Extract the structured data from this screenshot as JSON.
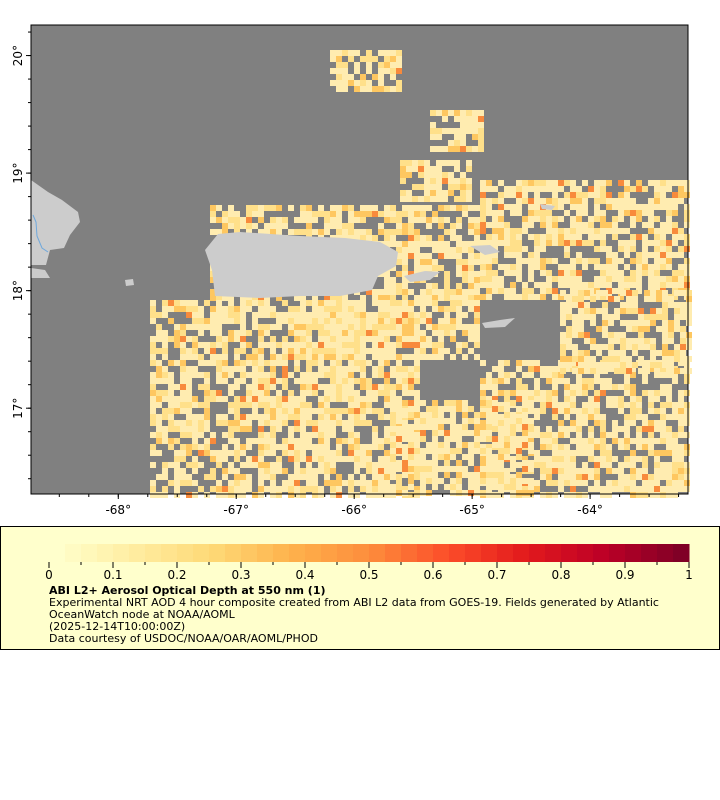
{
  "map": {
    "lon_range": [
      -68.74,
      -63.17
    ],
    "lat_range": [
      16.27,
      20.26
    ],
    "lon_ticks": [
      "-68°",
      "-67°",
      "-66°",
      "-65°",
      "-64°"
    ],
    "lon_tick_values": [
      -68,
      -67,
      -66,
      -65,
      -64
    ],
    "lat_ticks": [
      "20°",
      "19°",
      "18°",
      "17°"
    ],
    "lat_tick_values": [
      20,
      19,
      18,
      17
    ],
    "colors": {
      "no_data": "#808080",
      "land": "#cccccc",
      "river": "#6fa8dc",
      "low_aod": "#ffe9a0"
    }
  },
  "legend": {
    "colorbar_range": [
      0,
      1
    ],
    "colorbar_segments": 40,
    "colorscale": [
      "#ffffcc",
      "#ffeda0",
      "#fed976",
      "#feb24c",
      "#fd8d3c",
      "#fc4e2a",
      "#e31a1c",
      "#bd0026",
      "#800026"
    ],
    "tick_labels": [
      "0",
      "0.1",
      "0.2",
      "0.3",
      "0.4",
      "0.5",
      "0.6",
      "0.7",
      "0.8",
      "0.9",
      "1"
    ],
    "title": "ABI L2+ Aerosol Optical Depth at 550 nm (1)",
    "desc1": "Experimental NRT AOD 4 hour composite created from ABI L2 data from GOES-19. Fields generated by Atlantic",
    "desc2": "OceanWatch node at NOAA/AOML",
    "time": "(2025-12-14T10:00:00Z)",
    "credit": "Data courtesy of USDOC/NOAA/OAR/AOML/PHOD"
  }
}
